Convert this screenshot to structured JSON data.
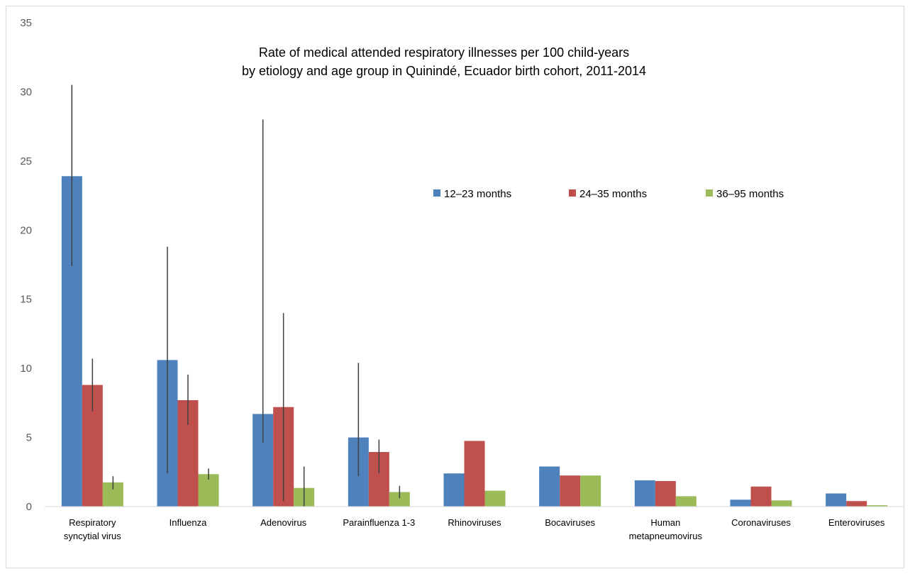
{
  "chart_data": {
    "type": "bar",
    "title_lines": [
      "Rate of medical attended respiratory illnesses per 100 child-years",
      "by etiology and age group in Quinindé, Ecuador birth cohort, 2011-2014"
    ],
    "categories": [
      [
        "Respiratory",
        "syncytial virus"
      ],
      [
        "Influenza"
      ],
      [
        "Adenovirus"
      ],
      [
        "Parainfluenza 1-3"
      ],
      [
        "Rhinoviruses"
      ],
      [
        "Bocaviruses"
      ],
      [
        "Human",
        "metapneumovirus"
      ],
      [
        "Coronaviruses"
      ],
      [
        "Enteroviruses"
      ]
    ],
    "series": [
      {
        "name": "12–23 months",
        "color": "#4F81BD",
        "values": [
          23.9,
          10.6,
          6.7,
          5.0,
          2.4,
          2.9,
          1.9,
          0.5,
          0.95
        ],
        "error_low": [
          17.4,
          2.4,
          4.6,
          2.2,
          null,
          null,
          null,
          null,
          null
        ],
        "error_high": [
          30.5,
          18.8,
          28.0,
          10.4,
          null,
          null,
          null,
          null,
          null
        ]
      },
      {
        "name": "24–35 months",
        "color": "#C0504D",
        "values": [
          8.8,
          7.7,
          7.2,
          3.95,
          4.75,
          2.25,
          1.85,
          1.45,
          0.4
        ],
        "error_low": [
          6.9,
          5.9,
          0.4,
          2.4,
          null,
          null,
          null,
          null,
          null
        ],
        "error_high": [
          10.7,
          9.55,
          14.0,
          4.85,
          null,
          null,
          null,
          null,
          null
        ]
      },
      {
        "name": "36–95 months",
        "color": "#9BBB59",
        "values": [
          1.75,
          2.35,
          1.35,
          1.05,
          1.15,
          2.25,
          0.75,
          0.45,
          0.1
        ],
        "error_low": [
          1.25,
          1.95,
          0.0,
          0.6,
          null,
          null,
          null,
          null,
          null
        ],
        "error_high": [
          2.2,
          2.75,
          2.9,
          1.5,
          null,
          null,
          null,
          null,
          null
        ]
      }
    ],
    "ylim": [
      0,
      35
    ],
    "yticks": [
      0,
      5,
      10,
      15,
      20,
      25,
      30,
      35
    ],
    "grid": false,
    "legend_position": "top-right"
  }
}
